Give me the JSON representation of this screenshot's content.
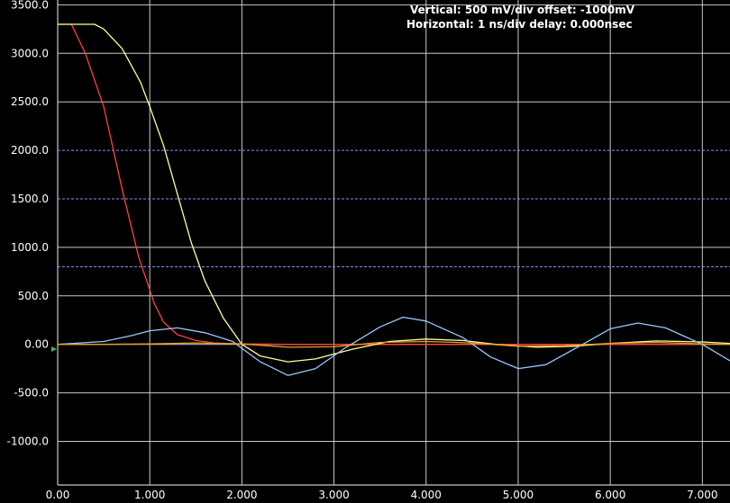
{
  "header": {
    "vertical": "Vertical: 500 mV/div  offset: -1000mV",
    "horizontal": "Horizontal: 1 ns/div  delay: 0.000nsec"
  },
  "colors": {
    "background": "#000000",
    "grid": "#c8c8c8",
    "ref_lines": "#8a8aff",
    "text": "#ffffff"
  },
  "chart_data": {
    "type": "line",
    "title": "",
    "xlabel": "",
    "ylabel": "",
    "xlim": [
      0,
      7.3
    ],
    "ylim": [
      -1450,
      3550
    ],
    "grid": true,
    "x_ticks": [
      0,
      1,
      2,
      3,
      4,
      5,
      6,
      7
    ],
    "x_tick_labels": [
      "0.00",
      "1.000",
      "2.000",
      "3.000",
      "4.000",
      "5.000",
      "6.000",
      "7.000"
    ],
    "y_ticks": [
      -1000,
      -500,
      0,
      500,
      1000,
      1500,
      2000,
      2500,
      3000,
      3500
    ],
    "y_tick_labels": [
      "-1000.0",
      "-500.0",
      "0.00",
      "500.0",
      "1000.0",
      "1500.0",
      "2000.0",
      "2500.0",
      "3000.0",
      "3500.0"
    ],
    "ref_lines": [
      2000,
      1500,
      800
    ],
    "series": [
      {
        "color": "#ff4040",
        "points": [
          [
            0,
            3300
          ],
          [
            0.15,
            3300
          ],
          [
            0.3,
            3000
          ],
          [
            0.5,
            2450
          ],
          [
            0.7,
            1600
          ],
          [
            0.88,
            900
          ],
          [
            0.98,
            620
          ],
          [
            1.05,
            420
          ],
          [
            1.15,
            230
          ],
          [
            1.3,
            100
          ],
          [
            1.5,
            40
          ],
          [
            1.7,
            15
          ],
          [
            2.0,
            5
          ],
          [
            2.5,
            0
          ],
          [
            3.0,
            0
          ],
          [
            4.0,
            0
          ],
          [
            5.0,
            0
          ],
          [
            6.0,
            0
          ],
          [
            7.3,
            0
          ]
        ]
      },
      {
        "color": "#ffff99",
        "points": [
          [
            0,
            3300
          ],
          [
            0.4,
            3300
          ],
          [
            0.5,
            3250
          ],
          [
            0.7,
            3050
          ],
          [
            0.9,
            2700
          ],
          [
            1.0,
            2450
          ],
          [
            1.15,
            2050
          ],
          [
            1.3,
            1550
          ],
          [
            1.45,
            1050
          ],
          [
            1.6,
            650
          ],
          [
            1.8,
            270
          ],
          [
            2.0,
            0
          ],
          [
            2.2,
            -120
          ],
          [
            2.5,
            -180
          ],
          [
            2.8,
            -150
          ],
          [
            3.2,
            -50
          ],
          [
            3.6,
            30
          ],
          [
            4.0,
            55
          ],
          [
            4.4,
            40
          ],
          [
            4.8,
            -5
          ],
          [
            5.2,
            -30
          ],
          [
            5.6,
            -20
          ],
          [
            6.0,
            10
          ],
          [
            6.5,
            35
          ],
          [
            7.0,
            25
          ],
          [
            7.3,
            10
          ]
        ]
      },
      {
        "color": "#99c8ff",
        "points": [
          [
            0,
            0
          ],
          [
            0.5,
            30
          ],
          [
            0.8,
            90
          ],
          [
            1.0,
            140
          ],
          [
            1.3,
            170
          ],
          [
            1.6,
            120
          ],
          [
            1.9,
            30
          ],
          [
            2.2,
            -180
          ],
          [
            2.5,
            -320
          ],
          [
            2.8,
            -250
          ],
          [
            3.1,
            -50
          ],
          [
            3.5,
            180
          ],
          [
            3.75,
            280
          ],
          [
            4.0,
            240
          ],
          [
            4.4,
            70
          ],
          [
            4.7,
            -130
          ],
          [
            5.0,
            -250
          ],
          [
            5.3,
            -210
          ],
          [
            5.7,
            0
          ],
          [
            6.0,
            160
          ],
          [
            6.3,
            220
          ],
          [
            6.6,
            170
          ],
          [
            7.0,
            0
          ],
          [
            7.3,
            -170
          ]
        ]
      },
      {
        "color": "#e8a020",
        "points": [
          [
            0,
            0
          ],
          [
            0.5,
            0
          ],
          [
            1.0,
            5
          ],
          [
            1.5,
            15
          ],
          [
            2.0,
            5
          ],
          [
            2.5,
            -30
          ],
          [
            3.0,
            -25
          ],
          [
            3.5,
            20
          ],
          [
            4.0,
            30
          ],
          [
            4.5,
            15
          ],
          [
            5.0,
            -20
          ],
          [
            5.5,
            -15
          ],
          [
            6.0,
            10
          ],
          [
            6.5,
            20
          ],
          [
            7.0,
            5
          ],
          [
            7.3,
            0
          ]
        ]
      }
    ]
  }
}
